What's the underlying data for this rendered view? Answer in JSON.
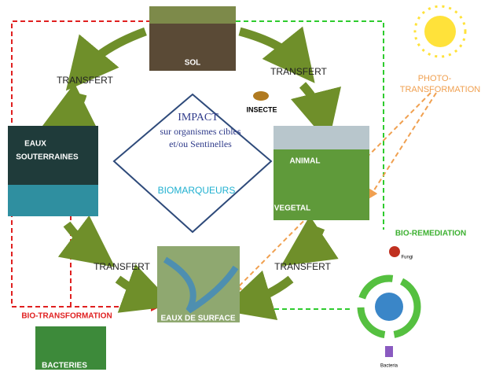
{
  "top": {
    "sol": "SOL",
    "transfert_left": "TRANSFERT",
    "transfert_right": "TRANSFERT",
    "insecte": "INSECTE",
    "photo": [
      "PHOTO-",
      "TRANSFORMATION"
    ]
  },
  "left": {
    "eaux_souterraines": [
      "EAUX",
      "SOUTERRAINES"
    ]
  },
  "center": {
    "impact": "IMPACT",
    "lines": [
      "sur organismes cibles",
      "et/ou Sentinelles"
    ],
    "biomarqueurs": "BIOMARQUEURS"
  },
  "right": {
    "animal": "ANIMAL",
    "vegetal": "VEGETAL",
    "bio_remediation": "BIO-REMEDIATION",
    "fungi": "Fungi",
    "bacteria": "Bacteria"
  },
  "bottom": {
    "transfert_left": "TRANSFERT",
    "transfert_right": "TRANSFERT",
    "eaux_de_surface": "EAUX DE SURFACE",
    "bio_transformation": "BIO-TRANSFORMATION",
    "bacteries": "BACTERIES"
  }
}
